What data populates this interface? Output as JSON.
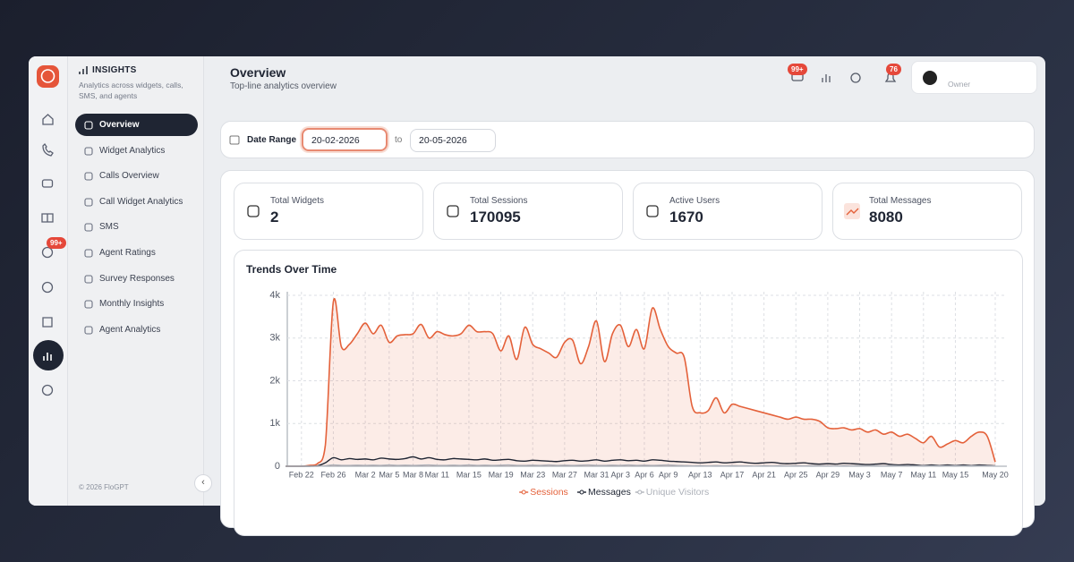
{
  "rail": {
    "badge": "99+"
  },
  "sidebar": {
    "title": "INSIGHTS",
    "description": "Analytics across widgets, calls, SMS, and agents",
    "nav": [
      "Overview",
      "Widget Analytics",
      "Calls Overview",
      "Call Widget Analytics",
      "SMS",
      "Agent Ratings",
      "Survey Responses",
      "Monthly Insights",
      "Agent Analytics"
    ],
    "footer": "© 2026 FloGPT"
  },
  "header": {
    "title": "Overview",
    "subtitle": "Top-line analytics overview",
    "badges": [
      "99+",
      "76"
    ],
    "user_role": "Owner"
  },
  "date_range": {
    "label": "Date Range",
    "from": "20-02-2026",
    "separator": "to",
    "to": "20-05-2026"
  },
  "stats": [
    {
      "label": "Total Widgets",
      "value": 2
    },
    {
      "label": "Total Sessions",
      "value": 170095
    },
    {
      "label": "Active Users",
      "value": 1670
    },
    {
      "label": "Total Messages",
      "value": 8080
    }
  ],
  "chart_data": {
    "type": "line",
    "title": "Trends Over Time",
    "categories": [
      null,
      null,
      "Feb 22",
      null,
      null,
      null,
      "Feb 26",
      null,
      null,
      null,
      "Mar 2",
      null,
      null,
      "Mar 5",
      null,
      null,
      "Mar 8",
      null,
      null,
      "Mar 11",
      null,
      null,
      null,
      "Mar 15",
      null,
      null,
      null,
      "Mar 19",
      null,
      null,
      null,
      "Mar 23",
      null,
      null,
      null,
      "Mar 27",
      null,
      null,
      null,
      "Mar 31",
      null,
      null,
      "Apr 3",
      null,
      null,
      "Apr 6",
      null,
      null,
      "Apr 9",
      null,
      null,
      null,
      "Apr 13",
      null,
      null,
      null,
      "Apr 17",
      null,
      null,
      null,
      "Apr 21",
      null,
      null,
      null,
      "Apr 25",
      null,
      null,
      null,
      "Apr 29",
      null,
      null,
      null,
      "May 3",
      null,
      null,
      null,
      "May 7",
      null,
      null,
      null,
      "May 11",
      null,
      null,
      null,
      "May 15",
      null,
      null,
      null,
      null,
      "May 20"
    ],
    "series": [
      {
        "name": "Sessions",
        "color": "#e4613a",
        "fill": true,
        "values": [
          0,
          0,
          0,
          20,
          60,
          500,
          3850,
          2800,
          2850,
          3100,
          3350,
          3100,
          3300,
          2900,
          3050,
          3080,
          3100,
          3320,
          3000,
          3150,
          3080,
          3050,
          3100,
          3300,
          3150,
          3150,
          3100,
          2700,
          3050,
          2500,
          3250,
          2850,
          2750,
          2650,
          2550,
          2900,
          2950,
          2400,
          2800,
          3400,
          2450,
          3100,
          3300,
          2800,
          3200,
          2750,
          3700,
          3200,
          2800,
          2650,
          2550,
          1400,
          1250,
          1300,
          1600,
          1250,
          1450,
          1400,
          1350,
          1300,
          1250,
          1200,
          1150,
          1100,
          1150,
          1100,
          1100,
          1050,
          900,
          880,
          900,
          850,
          880,
          800,
          850,
          750,
          800,
          700,
          750,
          650,
          550,
          700,
          450,
          520,
          600,
          550,
          700,
          800,
          700,
          100
        ]
      },
      {
        "name": "Messages",
        "color": "#1f2533",
        "fill": false,
        "values": [
          0,
          0,
          0,
          0,
          10,
          80,
          200,
          150,
          180,
          160,
          170,
          150,
          190,
          170,
          160,
          180,
          220,
          170,
          200,
          160,
          150,
          180,
          170,
          160,
          150,
          170,
          140,
          150,
          160,
          130,
          120,
          140,
          130,
          120,
          110,
          130,
          140,
          120,
          130,
          150,
          120,
          140,
          150,
          130,
          140,
          120,
          150,
          140,
          120,
          110,
          100,
          90,
          80,
          90,
          100,
          80,
          90,
          100,
          80,
          70,
          80,
          90,
          70,
          60,
          70,
          80,
          60,
          50,
          60,
          50,
          70,
          60,
          50,
          40,
          50,
          60,
          40,
          30,
          40,
          30,
          20,
          30,
          20,
          30,
          20,
          30,
          20,
          30,
          20,
          10
        ]
      },
      {
        "name": "Unique Visitors",
        "color": "#aeb2ba",
        "fill": false,
        "values": [
          0,
          0,
          0,
          0,
          0,
          10,
          30,
          20,
          20,
          25,
          20,
          25,
          20,
          30,
          20,
          25,
          20,
          25,
          30,
          20,
          20,
          25,
          20,
          30,
          20,
          25,
          20,
          25,
          30,
          20,
          20,
          25,
          20,
          30,
          20,
          25,
          20,
          25,
          30,
          20,
          20,
          25,
          20,
          30,
          20,
          25,
          20,
          25,
          30,
          20,
          15,
          10,
          15,
          10,
          15,
          10,
          15,
          10,
          10,
          5,
          15,
          10,
          15,
          10,
          15,
          10,
          15,
          10,
          10,
          5,
          15,
          10,
          15,
          10,
          15,
          10,
          15,
          10,
          10,
          5,
          15,
          10,
          15,
          10,
          15,
          10,
          15,
          10,
          10,
          5
        ]
      }
    ],
    "ylim": [
      0,
      4000
    ],
    "yticks": [
      0,
      {
        "value": 1000,
        "label": "1k"
      },
      {
        "value": 2000,
        "label": "2k"
      },
      {
        "value": 3000,
        "label": "3k"
      },
      {
        "value": 4000,
        "label": "4k"
      }
    ],
    "grid": true,
    "legend": "bottom"
  }
}
